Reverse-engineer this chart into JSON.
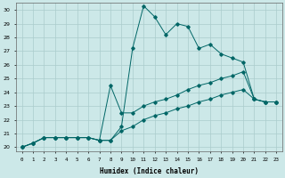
{
  "xlabel": "Humidex (Indice chaleur)",
  "background_color": "#cce8e8",
  "grid_color": "#aacccc",
  "line_color": "#006666",
  "xlim": [
    -0.5,
    23.5
  ],
  "ylim": [
    19.7,
    30.5
  ],
  "yticks": [
    20,
    21,
    22,
    23,
    24,
    25,
    26,
    27,
    28,
    29,
    30
  ],
  "xticks": [
    0,
    1,
    2,
    3,
    4,
    5,
    6,
    7,
    8,
    9,
    10,
    11,
    12,
    13,
    14,
    15,
    16,
    17,
    18,
    19,
    20,
    21,
    22,
    23
  ],
  "line1_x": [
    0,
    1,
    2,
    3,
    4,
    5,
    6,
    7,
    8,
    9,
    10,
    11,
    12,
    13,
    14,
    15,
    16,
    17,
    18,
    19,
    20,
    21,
    22,
    23
  ],
  "line1_y": [
    20.0,
    20.3,
    20.7,
    20.7,
    20.7,
    20.7,
    20.7,
    20.5,
    20.5,
    21.5,
    27.2,
    30.3,
    29.5,
    28.2,
    29.0,
    28.8,
    27.2,
    27.5,
    26.8,
    26.5,
    26.2,
    23.5,
    23.3,
    23.3
  ],
  "line2_x": [
    0,
    1,
    2,
    3,
    4,
    5,
    6,
    7,
    8,
    9,
    10,
    11,
    12,
    13,
    14,
    15,
    16,
    17,
    18,
    19,
    20,
    21,
    22,
    23
  ],
  "line2_y": [
    20.0,
    20.3,
    20.7,
    20.7,
    20.7,
    20.7,
    20.7,
    20.5,
    24.5,
    22.5,
    22.5,
    23.0,
    23.3,
    23.5,
    23.8,
    24.2,
    24.5,
    24.7,
    25.0,
    25.2,
    25.5,
    23.5,
    23.3,
    23.3
  ],
  "line3_x": [
    0,
    1,
    2,
    3,
    4,
    5,
    6,
    7,
    8,
    9,
    10,
    11,
    12,
    13,
    14,
    15,
    16,
    17,
    18,
    19,
    20,
    21,
    22,
    23
  ],
  "line3_y": [
    20.0,
    20.3,
    20.7,
    20.7,
    20.7,
    20.7,
    20.7,
    20.5,
    20.5,
    21.2,
    21.5,
    22.0,
    22.3,
    22.5,
    22.8,
    23.0,
    23.3,
    23.5,
    23.8,
    24.0,
    24.2,
    23.5,
    23.3,
    23.3
  ]
}
